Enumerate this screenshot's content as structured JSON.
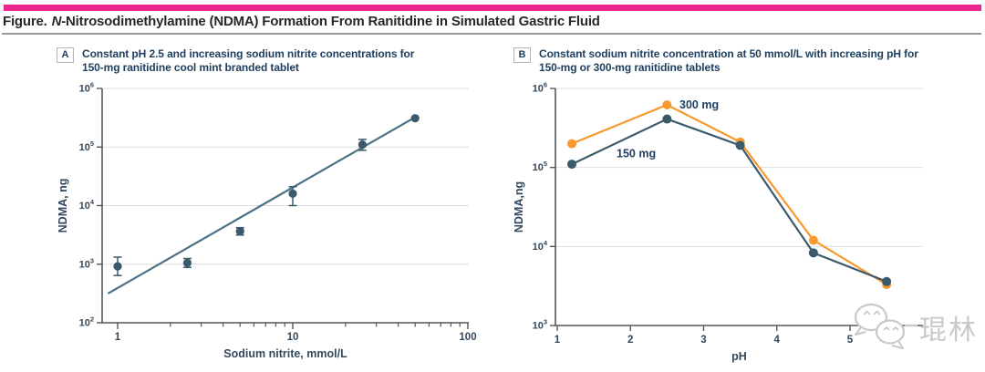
{
  "figure": {
    "title_prefix": "Figure.",
    "title_italic": "N",
    "title_rest": "-Nitrosodimethylamine (NDMA) Formation From Ranitidine in Simulated Gastric Fluid"
  },
  "colors": {
    "accent_bar": "#ec268f",
    "caption": "#1d3e5e",
    "axis": "#54575a",
    "grid": "#dcdddf",
    "tick_label": "#34485c",
    "series_dark": "#3a5a6c",
    "series_orange": "#f8992e",
    "trend": "#4b7183",
    "watermark": "#c7c9cb"
  },
  "panels": [
    {
      "label": "A",
      "caption_line1": "Constant pH 2.5 and increasing sodium nitrite concentrations for",
      "caption_line2": "150-mg ranitidine cool mint branded tablet"
    },
    {
      "label": "B",
      "caption_line1": "Constant sodium nitrite concentration at 50 mmol/L with increasing pH for",
      "caption_line2": "150-mg or 300-mg ranitidine tablets"
    }
  ],
  "chart_data": [
    {
      "type": "scatter",
      "panel": "A",
      "xlabel": "Sodium nitrite, mmol/L",
      "ylabel": "NDMA, ng",
      "xscale": "log",
      "yscale": "log",
      "xlim": [
        0.8,
        105
      ],
      "ylim": [
        100,
        1000000
      ],
      "x_ticks": [
        1,
        10,
        100
      ],
      "y_ticks": [
        100,
        1000,
        10000,
        100000,
        1000000
      ],
      "grid": "horizontal",
      "points": [
        {
          "x": 1,
          "y": 920,
          "err_lo": 640,
          "err_hi": 1320
        },
        {
          "x": 2.5,
          "y": 1050,
          "err_lo": 880,
          "err_hi": 1250
        },
        {
          "x": 5,
          "y": 3650,
          "err_lo": 3150,
          "err_hi": 4200
        },
        {
          "x": 10,
          "y": 16000,
          "err_lo": 10000,
          "err_hi": 21000
        },
        {
          "x": 25,
          "y": 110000,
          "err_lo": 88000,
          "err_hi": 135000
        },
        {
          "x": 50,
          "y": 310000,
          "err_lo": null,
          "err_hi": null
        }
      ],
      "trendline": {
        "x1": 0.88,
        "y1": 315,
        "x2": 50.5,
        "y2": 329000
      }
    },
    {
      "type": "line",
      "panel": "B",
      "xlabel": "pH",
      "ylabel": "NDMA,ng",
      "xscale": "linear",
      "yscale": "log",
      "xlim": [
        1,
        6
      ],
      "ylim": [
        1000,
        1000000
      ],
      "x_ticks": [
        1,
        2,
        3,
        4,
        5
      ],
      "y_ticks": [
        1000,
        10000,
        100000,
        1000000
      ],
      "grid": "horizontal",
      "x": [
        1.2,
        2.5,
        3.5,
        4.5,
        5.5
      ],
      "series": [
        {
          "name": "300 mg",
          "color_key": "series_orange",
          "values": [
            200000,
            620000,
            210000,
            12000,
            3300
          ]
        },
        {
          "name": "150 mg",
          "color_key": "series_dark",
          "values": [
            110000,
            410000,
            190000,
            8300,
            3600
          ]
        }
      ],
      "annotations": [
        {
          "text": "300 mg",
          "x": 2.67,
          "y": 620000
        },
        {
          "text": "150 mg",
          "x": 1.81,
          "y": 150000
        }
      ]
    }
  ],
  "watermark": {
    "text": "琨林"
  }
}
